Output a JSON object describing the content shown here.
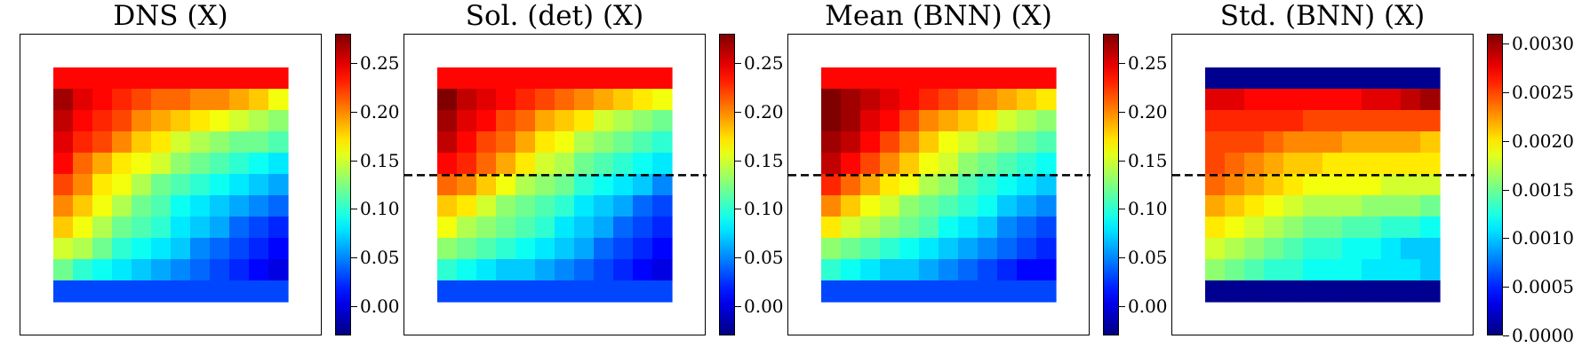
{
  "chart_data": [
    {
      "type": "heatmap",
      "title": "DNS (X)",
      "grid_rows": 11,
      "grid_cols": 12,
      "cmap": "jet",
      "colorbar": {
        "vmin": -0.03,
        "vmax": 0.28,
        "ticks": [
          0.0,
          0.05,
          0.1,
          0.15,
          0.2,
          0.25
        ],
        "tick_labels": [
          "0.00",
          "0.05",
          "0.10",
          "0.15",
          "0.20",
          "0.25"
        ]
      },
      "values": [
        [
          0.24,
          0.24,
          0.24,
          0.24,
          0.24,
          0.24,
          0.24,
          0.24,
          0.24,
          0.24,
          0.24,
          0.24
        ],
        [
          0.27,
          0.25,
          0.24,
          0.23,
          0.22,
          0.21,
          0.21,
          0.2,
          0.2,
          0.19,
          0.18,
          0.16
        ],
        [
          0.26,
          0.24,
          0.23,
          0.22,
          0.2,
          0.19,
          0.18,
          0.17,
          0.16,
          0.15,
          0.14,
          0.13
        ],
        [
          0.25,
          0.23,
          0.22,
          0.2,
          0.18,
          0.17,
          0.15,
          0.14,
          0.13,
          0.12,
          0.12,
          0.11
        ],
        [
          0.24,
          0.21,
          0.19,
          0.17,
          0.16,
          0.15,
          0.13,
          0.12,
          0.11,
          0.1,
          0.09,
          0.08
        ],
        [
          0.22,
          0.2,
          0.17,
          0.16,
          0.14,
          0.12,
          0.11,
          0.1,
          0.09,
          0.08,
          0.07,
          0.06
        ],
        [
          0.2,
          0.18,
          0.16,
          0.14,
          0.12,
          0.11,
          0.09,
          0.08,
          0.07,
          0.06,
          0.05,
          0.04
        ],
        [
          0.18,
          0.16,
          0.14,
          0.12,
          0.11,
          0.1,
          0.08,
          0.07,
          0.06,
          0.04,
          0.03,
          0.02
        ],
        [
          0.15,
          0.14,
          0.12,
          0.1,
          0.09,
          0.08,
          0.07,
          0.05,
          0.04,
          0.03,
          0.02,
          0.01
        ],
        [
          0.12,
          0.1,
          0.09,
          0.08,
          0.07,
          0.06,
          0.05,
          0.04,
          0.03,
          0.02,
          0.01,
          0.0
        ],
        [
          0.03,
          0.03,
          0.03,
          0.03,
          0.03,
          0.03,
          0.03,
          0.03,
          0.03,
          0.03,
          0.03,
          0.03
        ]
      ],
      "dashed_line": false
    },
    {
      "type": "heatmap",
      "title": "Sol. (det) (X)",
      "grid_rows": 11,
      "grid_cols": 12,
      "cmap": "jet",
      "colorbar": {
        "vmin": -0.03,
        "vmax": 0.28,
        "ticks": [
          0.0,
          0.05,
          0.1,
          0.15,
          0.2,
          0.25
        ],
        "tick_labels": [
          "0.00",
          "0.05",
          "0.10",
          "0.15",
          "0.20",
          "0.25"
        ]
      },
      "values": [
        [
          0.24,
          0.24,
          0.24,
          0.24,
          0.24,
          0.24,
          0.24,
          0.24,
          0.24,
          0.24,
          0.24,
          0.24
        ],
        [
          0.28,
          0.26,
          0.25,
          0.24,
          0.23,
          0.22,
          0.21,
          0.2,
          0.19,
          0.18,
          0.17,
          0.16
        ],
        [
          0.27,
          0.25,
          0.24,
          0.22,
          0.21,
          0.19,
          0.18,
          0.17,
          0.15,
          0.14,
          0.13,
          0.12
        ],
        [
          0.26,
          0.24,
          0.22,
          0.21,
          0.19,
          0.17,
          0.16,
          0.14,
          0.13,
          0.12,
          0.11,
          0.1
        ],
        [
          0.24,
          0.23,
          0.21,
          0.19,
          0.17,
          0.15,
          0.14,
          0.12,
          0.11,
          0.1,
          0.09,
          0.08
        ],
        [
          0.21,
          0.2,
          0.18,
          0.16,
          0.14,
          0.13,
          0.12,
          0.1,
          0.09,
          0.08,
          0.07,
          0.05
        ],
        [
          0.18,
          0.17,
          0.15,
          0.13,
          0.12,
          0.11,
          0.1,
          0.08,
          0.07,
          0.06,
          0.04,
          0.03
        ],
        [
          0.16,
          0.14,
          0.13,
          0.12,
          0.11,
          0.1,
          0.08,
          0.07,
          0.06,
          0.04,
          0.03,
          0.02
        ],
        [
          0.13,
          0.12,
          0.11,
          0.1,
          0.09,
          0.08,
          0.07,
          0.06,
          0.04,
          0.03,
          0.02,
          0.01
        ],
        [
          0.1,
          0.09,
          0.08,
          0.07,
          0.07,
          0.06,
          0.05,
          0.04,
          0.03,
          0.02,
          0.01,
          0.0
        ],
        [
          0.03,
          0.03,
          0.03,
          0.03,
          0.03,
          0.03,
          0.03,
          0.03,
          0.03,
          0.03,
          0.03,
          0.03
        ]
      ],
      "dashed_line": true
    },
    {
      "type": "heatmap",
      "title": "Mean (BNN) (X)",
      "grid_rows": 11,
      "grid_cols": 12,
      "cmap": "jet",
      "colorbar": {
        "vmin": -0.03,
        "vmax": 0.28,
        "ticks": [
          0.0,
          0.05,
          0.1,
          0.15,
          0.2,
          0.25
        ],
        "tick_labels": [
          "0.00",
          "0.05",
          "0.10",
          "0.15",
          "0.20",
          "0.25"
        ]
      },
      "values": [
        [
          0.24,
          0.24,
          0.24,
          0.24,
          0.24,
          0.24,
          0.24,
          0.24,
          0.24,
          0.24,
          0.24,
          0.24
        ],
        [
          0.28,
          0.27,
          0.26,
          0.25,
          0.24,
          0.23,
          0.22,
          0.21,
          0.2,
          0.19,
          0.18,
          0.17
        ],
        [
          0.28,
          0.27,
          0.25,
          0.24,
          0.22,
          0.2,
          0.19,
          0.18,
          0.17,
          0.15,
          0.14,
          0.13
        ],
        [
          0.27,
          0.26,
          0.24,
          0.22,
          0.2,
          0.18,
          0.16,
          0.15,
          0.14,
          0.13,
          0.12,
          0.11
        ],
        [
          0.26,
          0.24,
          0.22,
          0.2,
          0.18,
          0.16,
          0.15,
          0.13,
          0.12,
          0.11,
          0.1,
          0.09
        ],
        [
          0.23,
          0.21,
          0.19,
          0.17,
          0.16,
          0.14,
          0.13,
          0.11,
          0.1,
          0.09,
          0.08,
          0.07
        ],
        [
          0.2,
          0.18,
          0.16,
          0.15,
          0.13,
          0.12,
          0.11,
          0.1,
          0.09,
          0.07,
          0.06,
          0.05
        ],
        [
          0.17,
          0.15,
          0.14,
          0.13,
          0.12,
          0.11,
          0.09,
          0.08,
          0.07,
          0.05,
          0.04,
          0.03
        ],
        [
          0.13,
          0.12,
          0.11,
          0.1,
          0.09,
          0.08,
          0.07,
          0.06,
          0.05,
          0.04,
          0.03,
          0.02
        ],
        [
          0.1,
          0.09,
          0.08,
          0.07,
          0.07,
          0.06,
          0.05,
          0.04,
          0.03,
          0.02,
          0.01,
          0.01
        ],
        [
          0.03,
          0.03,
          0.03,
          0.03,
          0.03,
          0.03,
          0.03,
          0.03,
          0.03,
          0.03,
          0.03,
          0.03
        ]
      ],
      "dashed_line": true
    },
    {
      "type": "heatmap",
      "title": "Std. (BNN) (X)",
      "grid_rows": 11,
      "grid_cols": 12,
      "cmap": "jet",
      "colorbar": {
        "vmin": 0.0,
        "vmax": 0.0031,
        "ticks": [
          0.0,
          0.0005,
          0.001,
          0.0015,
          0.002,
          0.0025,
          0.003
        ],
        "tick_labels": [
          "0.0000",
          "0.0005",
          "0.0010",
          "0.0015",
          "0.0020",
          "0.0025",
          "0.0030"
        ]
      },
      "values": [
        [
          5e-05,
          5e-05,
          5e-05,
          5e-05,
          5e-05,
          5e-05,
          5e-05,
          5e-05,
          5e-05,
          5e-05,
          5e-05,
          5e-05
        ],
        [
          0.0028,
          0.0028,
          0.0027,
          0.0027,
          0.0027,
          0.0027,
          0.0027,
          0.0027,
          0.0028,
          0.0028,
          0.0029,
          0.003
        ],
        [
          0.0026,
          0.0026,
          0.0026,
          0.0026,
          0.0026,
          0.0025,
          0.0025,
          0.0025,
          0.0025,
          0.0025,
          0.0025,
          0.0025
        ],
        [
          0.0025,
          0.0025,
          0.0025,
          0.0024,
          0.0023,
          0.0023,
          0.0023,
          0.0022,
          0.0022,
          0.0022,
          0.0022,
          0.0021
        ],
        [
          0.0025,
          0.0024,
          0.0023,
          0.0022,
          0.0021,
          0.0021,
          0.002,
          0.002,
          0.002,
          0.002,
          0.002,
          0.002
        ],
        [
          0.0024,
          0.0023,
          0.0022,
          0.0021,
          0.002,
          0.0019,
          0.0019,
          0.0019,
          0.0019,
          0.0018,
          0.0018,
          0.0018
        ],
        [
          0.0022,
          0.0021,
          0.002,
          0.0019,
          0.0018,
          0.0017,
          0.0017,
          0.0017,
          0.0016,
          0.0016,
          0.0016,
          0.0015
        ],
        [
          0.002,
          0.0019,
          0.0018,
          0.0017,
          0.0016,
          0.0015,
          0.0015,
          0.0014,
          0.0014,
          0.0013,
          0.0013,
          0.0012
        ],
        [
          0.0018,
          0.0017,
          0.0016,
          0.0015,
          0.0014,
          0.0013,
          0.0013,
          0.0012,
          0.0012,
          0.0011,
          0.001,
          0.001
        ],
        [
          0.0016,
          0.0015,
          0.0014,
          0.0013,
          0.0013,
          0.0012,
          0.0012,
          0.0012,
          0.0011,
          0.0011,
          0.0011,
          0.001
        ],
        [
          5e-05,
          5e-05,
          5e-05,
          5e-05,
          5e-05,
          5e-05,
          5e-05,
          5e-05,
          5e-05,
          5e-05,
          5e-05,
          5e-05
        ]
      ],
      "dashed_line": true
    }
  ]
}
